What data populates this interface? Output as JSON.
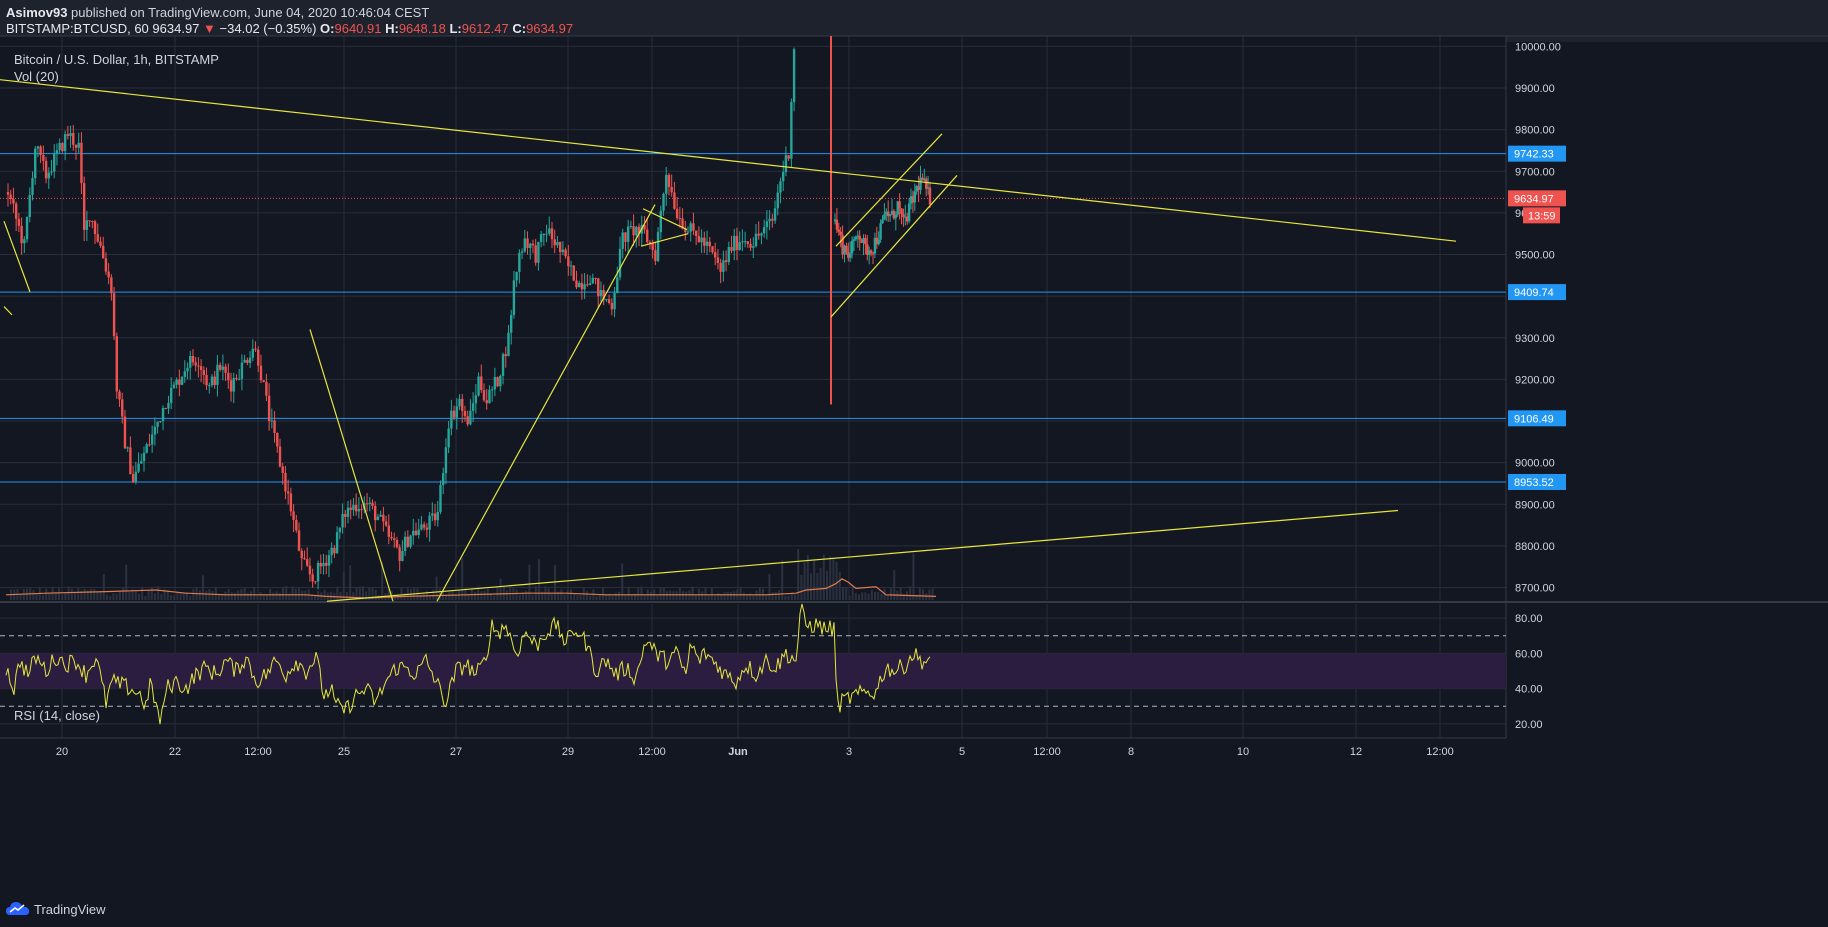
{
  "header": {
    "publisher_name": "Asimov93",
    "publisher_text": " published on TradingView.com, June 04, 2020 10:46:04 CEST",
    "symbol_interval": "BITSTAMP:BTCUSD, 60",
    "last": "9634.97",
    "change_arrow": "▼",
    "change": "−34.02 (−0.35%)",
    "o_label": "O:",
    "o_val": "9640.91",
    "h_label": "H:",
    "h_val": "9648.18",
    "l_label": "L:",
    "l_val": "9612.47",
    "c_label": "C:",
    "c_val": "9634.97"
  },
  "legend": {
    "title": "Bitcoin / U.S. Dollar, 1h, BITSTAMP",
    "volume": "Vol (20)",
    "rsi": "RSI (14, close)"
  },
  "footer": {
    "brand": "TradingView"
  },
  "colors": {
    "background": "#131722",
    "grid": "#2a2e39",
    "bull": "#26a69a",
    "bear": "#ef5350",
    "hline": "#2196f3",
    "trend": "#e6e63c",
    "rsi_line": "#e6e63c",
    "rsi_band": "#2a1d40",
    "vol_ma": "#e07a4a"
  },
  "chart_data": {
    "type": "candlestick",
    "price_axis": {
      "range": [
        8670,
        10025
      ],
      "ticks": [
        "10000.00",
        "9900.00",
        "9800.00",
        "9700.00",
        "9600.00",
        "9500.00",
        "9400.00",
        "9300.00",
        "9200.00",
        "9100.00",
        "9000.00",
        "8900.00",
        "8800.00",
        "8700.00"
      ]
    },
    "time_axis": {
      "ticks": [
        "20",
        "22",
        "12:00",
        "25",
        "27",
        "29",
        "12:00",
        "Jun",
        "3",
        "5",
        "12:00",
        "8",
        "10",
        "12",
        "12:00"
      ]
    },
    "price_labels": [
      {
        "value": 9742.33,
        "text": "9742.33",
        "color": "#2196f3"
      },
      {
        "value": 9634.97,
        "text": "9634.97",
        "color": "#ef5350"
      },
      {
        "value": 9409.74,
        "text": "9409.74",
        "color": "#2196f3"
      },
      {
        "value": 9106.49,
        "text": "9106.49",
        "color": "#2196f3"
      },
      {
        "value": 8953.52,
        "text": "8953.52",
        "color": "#2196f3"
      }
    ],
    "countdown_label": "13:59",
    "horizontal_levels": [
      9742.33,
      9409.74,
      9106.49,
      8953.52
    ],
    "last_price": 9634.97,
    "candle_path_anchors": [
      [
        0,
        9650
      ],
      [
        6,
        9520
      ],
      [
        10,
        9760
      ],
      [
        14,
        9690
      ],
      [
        18,
        9740
      ],
      [
        22,
        9790
      ],
      [
        26,
        9760
      ],
      [
        28,
        9550
      ],
      [
        30,
        9600
      ],
      [
        34,
        9520
      ],
      [
        38,
        9420
      ],
      [
        40,
        9180
      ],
      [
        43,
        9050
      ],
      [
        46,
        8960
      ],
      [
        50,
        9020
      ],
      [
        54,
        9080
      ],
      [
        58,
        9150
      ],
      [
        62,
        9190
      ],
      [
        66,
        9240
      ],
      [
        70,
        9250
      ],
      [
        74,
        9180
      ],
      [
        78,
        9230
      ],
      [
        82,
        9190
      ],
      [
        86,
        9230
      ],
      [
        90,
        9280
      ],
      [
        92,
        9250
      ],
      [
        96,
        9110
      ],
      [
        100,
        9000
      ],
      [
        104,
        8890
      ],
      [
        108,
        8760
      ],
      [
        112,
        8720
      ],
      [
        116,
        8760
      ],
      [
        120,
        8800
      ],
      [
        124,
        8880
      ],
      [
        128,
        8900
      ],
      [
        132,
        8900
      ],
      [
        136,
        8870
      ],
      [
        140,
        8820
      ],
      [
        144,
        8780
      ],
      [
        148,
        8830
      ],
      [
        152,
        8840
      ],
      [
        156,
        8860
      ],
      [
        158,
        8880
      ],
      [
        162,
        9100
      ],
      [
        166,
        9150
      ],
      [
        168,
        9100
      ],
      [
        170,
        9110
      ],
      [
        173,
        9200
      ],
      [
        176,
        9150
      ],
      [
        180,
        9200
      ],
      [
        184,
        9300
      ],
      [
        186,
        9430
      ],
      [
        188,
        9500
      ],
      [
        190,
        9540
      ],
      [
        194,
        9500
      ],
      [
        198,
        9560
      ],
      [
        202,
        9520
      ],
      [
        206,
        9470
      ],
      [
        210,
        9430
      ],
      [
        214,
        9450
      ],
      [
        218,
        9400
      ],
      [
        222,
        9380
      ],
      [
        226,
        9540
      ],
      [
        230,
        9560
      ],
      [
        234,
        9550
      ],
      [
        238,
        9500
      ],
      [
        242,
        9700
      ],
      [
        246,
        9600
      ],
      [
        250,
        9560
      ],
      [
        254,
        9540
      ],
      [
        258,
        9510
      ],
      [
        262,
        9460
      ],
      [
        266,
        9520
      ],
      [
        270,
        9540
      ],
      [
        274,
        9530
      ],
      [
        278,
        9560
      ],
      [
        281,
        9580
      ],
      [
        284,
        9680
      ],
      [
        287,
        9750
      ],
      [
        289,
        10000
      ]
    ],
    "gap_spike": {
      "high": 10025,
      "low": 9140
    },
    "candle_path_anchors_2": [
      [
        0,
        9580
      ],
      [
        4,
        9520
      ],
      [
        8,
        9500
      ],
      [
        12,
        9560
      ],
      [
        16,
        9510
      ],
      [
        20,
        9520
      ],
      [
        24,
        9560
      ],
      [
        27,
        9600
      ],
      [
        30,
        9590
      ],
      [
        33,
        9620
      ],
      [
        36,
        9570
      ],
      [
        40,
        9620
      ],
      [
        44,
        9670
      ],
      [
        46,
        9680
      ],
      [
        48,
        9650
      ],
      [
        50,
        9634.97
      ]
    ],
    "trendlines": [
      {
        "from": [
          0,
          9920
        ],
        "to": [
          1456,
          9532
        ]
      },
      {
        "from": [
          327,
          8667
        ],
        "to": [
          1398,
          8885
        ]
      },
      {
        "from": [
          4,
          9580
        ],
        "to": [
          30,
          9410
        ]
      },
      {
        "from": [
          4,
          9375
        ],
        "to": [
          12,
          9355
        ]
      },
      {
        "from": [
          310,
          9320
        ],
        "to": [
          393,
          8667
        ]
      },
      {
        "from": [
          437,
          8667
        ],
        "to": [
          655,
          9620
        ]
      },
      {
        "from": [
          643,
          9610
        ],
        "to": [
          687,
          9560
        ]
      },
      {
        "from": [
          641,
          9520
        ],
        "to": [
          688,
          9550
        ]
      },
      {
        "from": [
          831,
          9350
        ],
        "to": [
          957,
          9690
        ]
      },
      {
        "from": [
          836,
          9520
        ],
        "to": [
          942,
          9790
        ]
      }
    ],
    "rsi": {
      "range": [
        12,
        88
      ],
      "ticks": [
        "80.00",
        "60.00",
        "40.00",
        "20.00"
      ],
      "upper": 70,
      "lower": 30,
      "band": [
        40,
        60
      ],
      "anchors": [
        [
          0,
          52
        ],
        [
          8,
          40
        ],
        [
          14,
          56
        ],
        [
          22,
          48
        ],
        [
          30,
          58
        ],
        [
          40,
          50
        ],
        [
          50,
          58
        ],
        [
          60,
          54
        ],
        [
          70,
          56
        ],
        [
          80,
          48
        ],
        [
          90,
          58
        ],
        [
          100,
          32
        ],
        [
          106,
          44
        ],
        [
          115,
          42
        ],
        [
          125,
          40
        ],
        [
          135,
          36
        ],
        [
          140,
          30
        ],
        [
          145,
          44
        ],
        [
          150,
          30
        ],
        [
          155,
          20
        ],
        [
          160,
          40
        ],
        [
          170,
          44
        ],
        [
          180,
          40
        ],
        [
          190,
          48
        ],
        [
          200,
          52
        ],
        [
          210,
          48
        ],
        [
          220,
          56
        ],
        [
          230,
          50
        ],
        [
          240,
          58
        ],
        [
          250,
          44
        ],
        [
          260,
          48
        ],
        [
          270,
          56
        ],
        [
          280,
          48
        ],
        [
          290,
          56
        ],
        [
          300,
          50
        ],
        [
          310,
          58
        ],
        [
          318,
          36
        ],
        [
          325,
          40
        ],
        [
          330,
          30
        ],
        [
          340,
          28
        ],
        [
          350,
          36
        ],
        [
          360,
          40
        ],
        [
          370,
          32
        ],
        [
          380,
          44
        ],
        [
          390,
          52
        ],
        [
          400,
          52
        ],
        [
          410,
          48
        ],
        [
          420,
          56
        ],
        [
          430,
          44
        ],
        [
          440,
          32
        ],
        [
          450,
          50
        ],
        [
          460,
          54
        ],
        [
          470,
          48
        ],
        [
          480,
          56
        ],
        [
          485,
          76
        ],
        [
          492,
          72
        ],
        [
          500,
          76
        ],
        [
          510,
          60
        ],
        [
          520,
          72
        ],
        [
          530,
          64
        ],
        [
          540,
          72
        ],
        [
          550,
          76
        ],
        [
          560,
          66
        ],
        [
          570,
          74
        ],
        [
          580,
          66
        ],
        [
          590,
          50
        ],
        [
          600,
          56
        ],
        [
          610,
          48
        ],
        [
          620,
          52
        ],
        [
          630,
          46
        ],
        [
          640,
          68
        ],
        [
          650,
          60
        ],
        [
          660,
          56
        ],
        [
          670,
          60
        ],
        [
          680,
          48
        ],
        [
          685,
          66
        ],
        [
          692,
          56
        ],
        [
          700,
          60
        ],
        [
          710,
          54
        ],
        [
          720,
          48
        ],
        [
          730,
          44
        ],
        [
          740,
          54
        ],
        [
          750,
          48
        ],
        [
          760,
          56
        ],
        [
          770,
          52
        ],
        [
          780,
          60
        ],
        [
          790,
          56
        ],
        [
          795,
          86
        ],
        [
          800,
          76
        ],
        [
          810,
          76
        ],
        [
          820,
          74
        ],
        [
          828,
          74
        ],
        [
          831,
          30
        ],
        [
          840,
          34
        ],
        [
          850,
          36
        ],
        [
          860,
          38
        ],
        [
          870,
          38
        ],
        [
          875,
          46
        ],
        [
          880,
          52
        ],
        [
          890,
          50
        ],
        [
          900,
          54
        ],
        [
          907,
          60
        ],
        [
          915,
          56
        ],
        [
          925,
          55
        ],
        [
          930,
          54
        ]
      ]
    },
    "volume_ma": {
      "anchors": [
        [
          0,
          2
        ],
        [
          40,
          3
        ],
        [
          100,
          4
        ],
        [
          150,
          5
        ],
        [
          180,
          3
        ],
        [
          220,
          2
        ],
        [
          300,
          2
        ],
        [
          320,
          1
        ],
        [
          360,
          0
        ],
        [
          400,
          1
        ],
        [
          460,
          2
        ],
        [
          520,
          3
        ],
        [
          560,
          3
        ],
        [
          600,
          2
        ],
        [
          660,
          2
        ],
        [
          700,
          2
        ],
        [
          760,
          2
        ],
        [
          790,
          3
        ],
        [
          800,
          5
        ],
        [
          820,
          6
        ],
        [
          830,
          9
        ],
        [
          836,
          12
        ],
        [
          842,
          10
        ],
        [
          850,
          6
        ],
        [
          870,
          7
        ],
        [
          880,
          2
        ],
        [
          930,
          1
        ]
      ]
    }
  }
}
